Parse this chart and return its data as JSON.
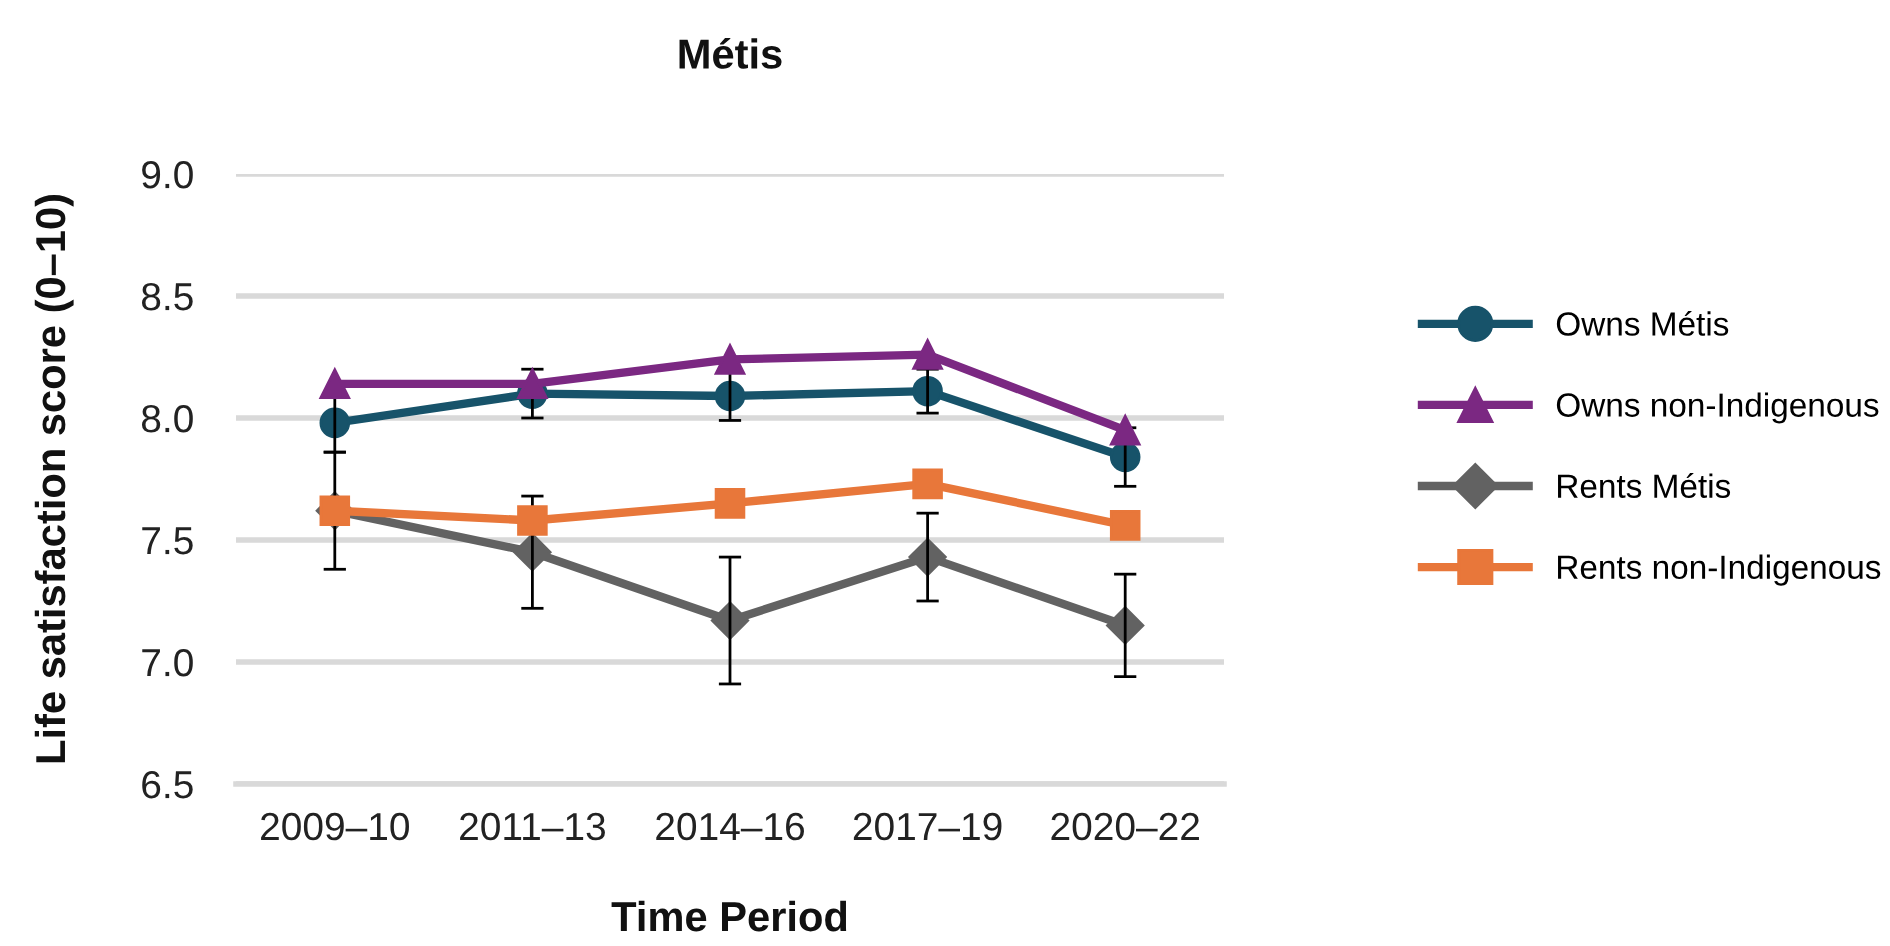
{
  "chart_data": {
    "type": "line",
    "title": "Métis",
    "xlabel": "Time Period",
    "ylabel": "Life satisfaction score (0–10)",
    "categories": [
      "2009–10",
      "2011–13",
      "2014–16",
      "2017–19",
      "2020–22"
    ],
    "series": [
      {
        "name": "Owns Métis",
        "color": "#17536a",
        "marker": "circle",
        "values": [
          7.98,
          8.1,
          8.09,
          8.11,
          7.84
        ],
        "errors": [
          0.12,
          0.1,
          0.1,
          0.09,
          0.12
        ]
      },
      {
        "name": "Owns non-Indigenous",
        "color": "#7b2882",
        "marker": "triangle",
        "values": [
          8.14,
          8.14,
          8.24,
          8.26,
          7.95
        ]
      },
      {
        "name": "Rents Métis",
        "color": "#626262",
        "marker": "diamond",
        "values": [
          7.62,
          7.45,
          7.17,
          7.43,
          7.15
        ],
        "errors": [
          0.24,
          0.23,
          0.26,
          0.18,
          0.21
        ]
      },
      {
        "name": "Rents non-Indigenous",
        "color": "#e8773a",
        "marker": "square",
        "values": [
          7.62,
          7.58,
          7.65,
          7.73,
          7.56
        ]
      }
    ],
    "ylim": [
      6.5,
      9.0
    ],
    "yticks": [
      {
        "value": 6.5,
        "label": "6.5"
      },
      {
        "value": 7.0,
        "label": "7.0"
      },
      {
        "value": 7.5,
        "label": "7.5"
      },
      {
        "value": 8.0,
        "label": "8.0"
      },
      {
        "value": 8.5,
        "label": "8.5"
      },
      {
        "value": 9.0,
        "label": "9.0"
      }
    ],
    "grid": "y",
    "legend": "right",
    "line_style": "solid"
  }
}
